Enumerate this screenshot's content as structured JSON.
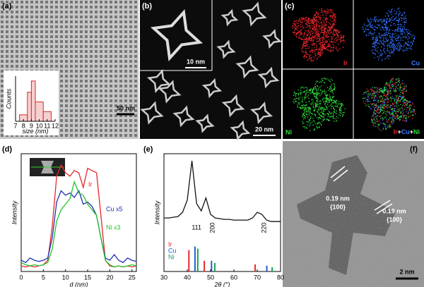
{
  "panels": {
    "labels": [
      "(a)",
      "(b)",
      "(c)",
      "(d)",
      "(e)",
      "(f)"
    ],
    "a": {
      "scale": "50 nm"
    },
    "b": {
      "scale": "20 nm",
      "inset_scale": "10 nm"
    },
    "c": {
      "maps": [
        "Ir",
        "Cu",
        "Ni"
      ],
      "overlay": [
        "Ir",
        "+",
        "Cu",
        "+",
        "Ni"
      ]
    },
    "f": {
      "scale": "2 nm",
      "fringes": [
        {
          "spacing": "0.19 nm",
          "plane": "{100}"
        },
        {
          "spacing": "0.19 nm",
          "plane": "{100}"
        }
      ]
    }
  },
  "chart_data": [
    {
      "type": "histogram",
      "xlabel": "size (nm)",
      "ylabel": "Counts",
      "bins": [
        7.5,
        8.5,
        9,
        9.5,
        10.5,
        11.5
      ],
      "values": [
        4,
        18,
        25,
        12,
        6
      ],
      "color": "#d62728",
      "xlim": [
        7,
        12
      ],
      "xticks": [
        7,
        8,
        9,
        10,
        11,
        12
      ],
      "ylim": [
        0,
        28
      ]
    },
    {
      "type": "line",
      "xlabel": "d (nm)",
      "ylabel": "Intensity",
      "x": [
        0,
        1,
        2,
        3,
        4,
        5,
        6,
        7,
        8,
        9,
        10,
        11,
        12,
        13,
        14,
        15,
        16,
        17,
        18,
        19,
        20,
        21,
        22,
        23,
        24,
        25,
        26
      ],
      "xlim": [
        0,
        26
      ],
      "xticks": [
        0,
        5,
        10,
        15,
        20,
        25
      ],
      "ylim": [
        0,
        1.05
      ],
      "series": [
        {
          "name": "Ir",
          "color": "#e8262b",
          "values": [
            0.05,
            0.04,
            0.05,
            0.04,
            0.05,
            0.06,
            0.1,
            0.4,
            0.85,
            0.95,
            0.88,
            0.85,
            0.9,
            0.88,
            0.75,
            0.92,
            0.9,
            0.88,
            0.5,
            0.1,
            0.05,
            0.04,
            0.05,
            0.04,
            0.05,
            0.04,
            0.05
          ]
        },
        {
          "name": "Cu x5",
          "color": "#1f2fb0",
          "values": [
            0.1,
            0.08,
            0.12,
            0.1,
            0.09,
            0.1,
            0.12,
            0.3,
            0.62,
            0.72,
            0.68,
            0.7,
            0.66,
            0.72,
            0.6,
            0.62,
            0.58,
            0.5,
            0.3,
            0.12,
            0.1,
            0.15,
            0.1,
            0.08,
            0.12,
            0.1,
            0.09
          ]
        },
        {
          "name": "Ni x3",
          "color": "#22c42a",
          "values": [
            0.08,
            0.06,
            0.05,
            0.06,
            0.05,
            0.06,
            0.08,
            0.2,
            0.45,
            0.55,
            0.6,
            0.65,
            0.8,
            0.7,
            0.68,
            0.6,
            0.55,
            0.5,
            0.3,
            0.1,
            0.06,
            0.04,
            0.05,
            0.04,
            0.05,
            0.06,
            0.05
          ]
        }
      ]
    },
    {
      "type": "xrd",
      "xlabel": "2θ (°)",
      "ylabel": "Intensity",
      "x": [
        30,
        32,
        34,
        36,
        38,
        40,
        42,
        44,
        46,
        48,
        50,
        52,
        54,
        56,
        58,
        60,
        62,
        64,
        66,
        68,
        70,
        72,
        74,
        76,
        78,
        80
      ],
      "xlim": [
        30,
        80
      ],
      "xticks": [
        30,
        40,
        50,
        60,
        70,
        80
      ],
      "ylim": [
        0,
        1.65
      ],
      "values": [
        0.75,
        0.75,
        0.76,
        0.77,
        0.83,
        1.0,
        1.55,
        0.95,
        0.85,
        1.03,
        0.8,
        0.75,
        0.74,
        0.73,
        0.73,
        0.72,
        0.72,
        0.72,
        0.72,
        0.75,
        0.83,
        0.8,
        0.72,
        0.7,
        0.7,
        0.7
      ],
      "color": "#111111",
      "references": [
        {
          "name": "Ir",
          "color": "#e8262b",
          "x": [
            40.7,
            47.3,
            69.1
          ],
          "values": [
            0.3,
            0.15,
            0.1
          ]
        },
        {
          "name": "Cu",
          "color": "#1f5fd0",
          "x": [
            43.3,
            50.4,
            74.1
          ],
          "values": [
            0.35,
            0.15,
            0.08
          ]
        },
        {
          "name": "Ni",
          "color": "#1aa05a",
          "x": [
            44.5,
            51.8,
            76.4
          ],
          "values": [
            0.32,
            0.12,
            0.06
          ]
        }
      ],
      "peak_labels": [
        {
          "label": "111",
          "x": 44
        },
        {
          "label": "200",
          "x": 51
        },
        {
          "label": "220",
          "x": 73
        }
      ]
    }
  ]
}
